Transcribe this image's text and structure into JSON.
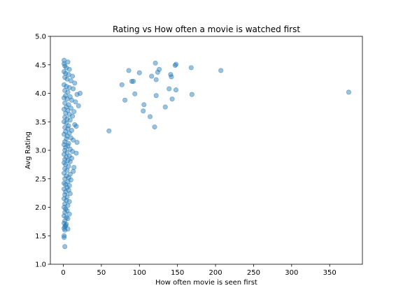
{
  "chart_data": {
    "type": "scatter",
    "title": "Rating vs How often a movie is watched first",
    "xlabel": "How often movie is seen first",
    "ylabel": "Avg Rating",
    "xlim": [
      -17,
      393
    ],
    "ylim": [
      1.0,
      5.0
    ],
    "xticks": [
      "0",
      "50",
      "100",
      "150",
      "200",
      "250",
      "300",
      "350"
    ],
    "yticks": [
      "1.0",
      "1.5",
      "2.0",
      "2.5",
      "3.0",
      "3.5",
      "4.0",
      "4.5",
      "5.0"
    ],
    "grid": false,
    "marker_color": "#1f77b4",
    "marker_alpha": 0.45,
    "series": [
      {
        "points": [
          [
            1,
            4.58
          ],
          [
            1,
            4.52
          ],
          [
            6,
            4.55
          ],
          [
            2,
            4.48
          ],
          [
            4,
            4.45
          ],
          [
            8,
            4.42
          ],
          [
            1,
            4.38
          ],
          [
            3,
            4.35
          ],
          [
            7,
            4.33
          ],
          [
            12,
            4.3
          ],
          [
            2,
            4.28
          ],
          [
            5,
            4.25
          ],
          [
            10,
            4.22
          ],
          [
            15,
            4.18
          ],
          [
            1,
            4.15
          ],
          [
            4,
            4.12
          ],
          [
            8,
            4.1
          ],
          [
            13,
            4.08
          ],
          [
            2,
            4.05
          ],
          [
            6,
            4.02
          ],
          [
            22,
            4.0
          ],
          [
            18,
            3.98
          ],
          [
            3,
            3.96
          ],
          [
            9,
            3.94
          ],
          [
            1,
            3.92
          ],
          [
            5,
            3.9
          ],
          [
            11,
            3.88
          ],
          [
            16,
            3.85
          ],
          [
            2,
            3.83
          ],
          [
            7,
            3.8
          ],
          [
            20,
            3.78
          ],
          [
            4,
            3.76
          ],
          [
            10,
            3.74
          ],
          [
            1,
            3.72
          ],
          [
            6,
            3.7
          ],
          [
            14,
            3.68
          ],
          [
            3,
            3.65
          ],
          [
            8,
            3.63
          ],
          [
            12,
            3.6
          ],
          [
            2,
            3.58
          ],
          [
            5,
            3.55
          ],
          [
            9,
            3.53
          ],
          [
            1,
            3.5
          ],
          [
            4,
            3.48
          ],
          [
            15,
            3.45
          ],
          [
            7,
            3.43
          ],
          [
            17,
            3.42
          ],
          [
            2,
            3.4
          ],
          [
            6,
            3.38
          ],
          [
            11,
            3.35
          ],
          [
            3,
            3.33
          ],
          [
            8,
            3.3
          ],
          [
            1,
            3.28
          ],
          [
            5,
            3.25
          ],
          [
            10,
            3.22
          ],
          [
            4,
            3.2
          ],
          [
            13,
            3.18
          ],
          [
            2,
            3.15
          ],
          [
            18,
            3.14
          ],
          [
            7,
            3.12
          ],
          [
            1,
            3.1
          ],
          [
            6,
            3.08
          ],
          [
            3,
            3.05
          ],
          [
            9,
            3.02
          ],
          [
            2,
            3.0
          ],
          [
            12,
            2.98
          ],
          [
            5,
            2.96
          ],
          [
            17,
            2.95
          ],
          [
            1,
            2.93
          ],
          [
            8,
            2.9
          ],
          [
            4,
            2.88
          ],
          [
            11,
            2.86
          ],
          [
            2,
            2.84
          ],
          [
            6,
            2.82
          ],
          [
            9,
            2.8
          ],
          [
            1,
            2.78
          ],
          [
            3,
            2.75
          ],
          [
            7,
            2.72
          ],
          [
            14,
            2.7
          ],
          [
            2,
            2.68
          ],
          [
            5,
            2.65
          ],
          [
            13,
            2.63
          ],
          [
            1,
            2.6
          ],
          [
            9,
            2.58
          ],
          [
            4,
            2.55
          ],
          [
            7,
            2.52
          ],
          [
            2,
            2.5
          ],
          [
            10,
            2.48
          ],
          [
            6,
            2.45
          ],
          [
            1,
            2.42
          ],
          [
            3,
            2.4
          ],
          [
            8,
            2.38
          ],
          [
            5,
            2.35
          ],
          [
            1,
            2.32
          ],
          [
            7,
            2.3
          ],
          [
            3,
            2.27
          ],
          [
            9,
            2.24
          ],
          [
            2,
            2.22
          ],
          [
            5,
            2.18
          ],
          [
            1,
            2.15
          ],
          [
            4,
            2.12
          ],
          [
            8,
            2.1
          ],
          [
            2,
            2.06
          ],
          [
            6,
            2.03
          ],
          [
            1,
            2.0
          ],
          [
            3,
            1.97
          ],
          [
            5,
            1.94
          ],
          [
            2,
            1.91
          ],
          [
            8,
            1.88
          ],
          [
            1,
            1.85
          ],
          [
            4,
            1.82
          ],
          [
            6,
            1.8
          ],
          [
            2,
            1.76
          ],
          [
            1,
            1.72
          ],
          [
            4,
            1.7
          ],
          [
            2,
            1.66
          ],
          [
            1,
            1.63
          ],
          [
            6,
            1.62
          ],
          [
            3,
            1.68
          ],
          [
            2,
            1.6
          ],
          [
            1,
            1.5
          ],
          [
            1,
            1.47
          ],
          [
            2,
            1.31
          ],
          [
            60,
            3.34
          ],
          [
            77,
            4.15
          ],
          [
            81,
            3.88
          ],
          [
            86,
            4.4
          ],
          [
            90,
            4.21
          ],
          [
            92,
            4.21
          ],
          [
            94,
            3.99
          ],
          [
            100,
            4.36
          ],
          [
            105,
            3.69
          ],
          [
            106,
            3.8
          ],
          [
            114,
            3.59
          ],
          [
            116,
            4.3
          ],
          [
            120,
            3.41
          ],
          [
            121,
            4.53
          ],
          [
            122,
            3.96
          ],
          [
            122,
            4.24
          ],
          [
            124,
            4.37
          ],
          [
            126,
            4.42
          ],
          [
            134,
            3.76
          ],
          [
            139,
            4.08
          ],
          [
            141,
            4.33
          ],
          [
            142,
            4.29
          ],
          [
            143,
            3.9
          ],
          [
            147,
            4.49
          ],
          [
            148,
            4.51
          ],
          [
            148,
            4.06
          ],
          [
            168,
            4.45
          ],
          [
            169,
            3.98
          ],
          [
            207,
            4.4
          ],
          [
            375,
            4.02
          ]
        ]
      }
    ]
  }
}
